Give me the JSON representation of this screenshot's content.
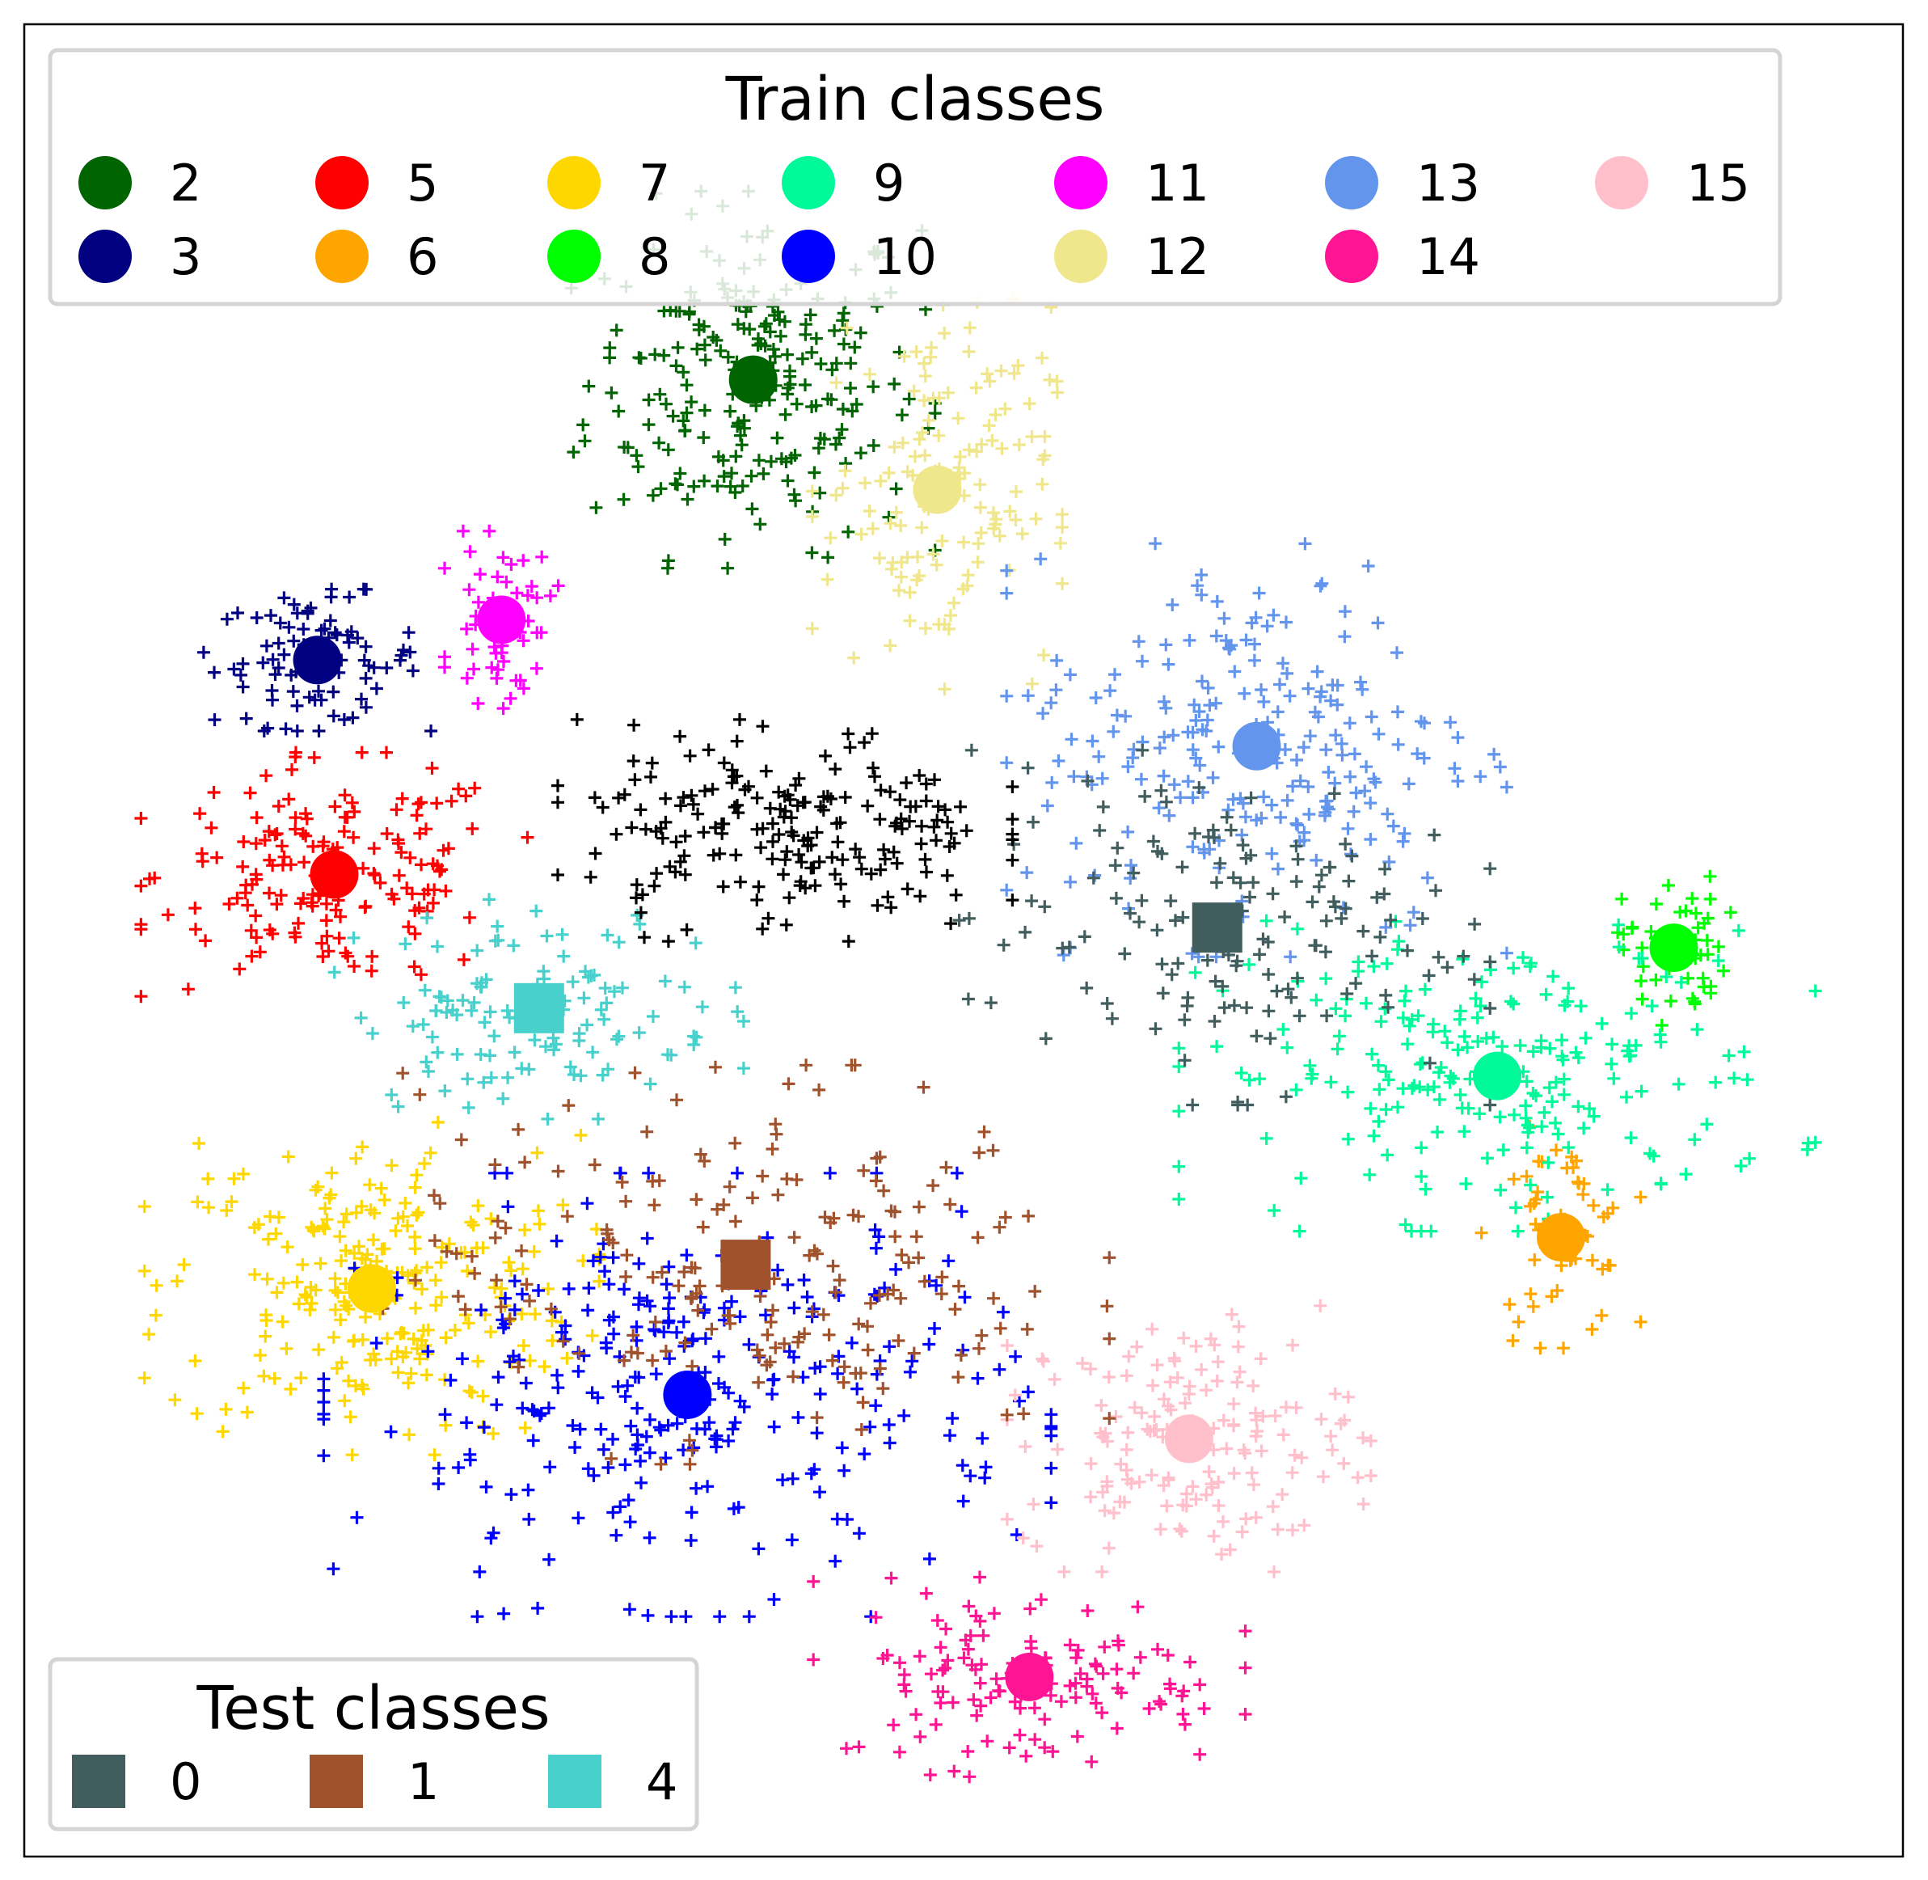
{
  "chart_data": {
    "type": "scatter",
    "title": "",
    "xlabel": "",
    "ylabel": "",
    "axes_ticks": false,
    "grid": false,
    "xlim": [
      0,
      100
    ],
    "ylim": [
      0,
      100
    ],
    "train_legend": {
      "title": "Train classes",
      "placement": "top",
      "entries": [
        {
          "label": "2",
          "color": "#006400"
        },
        {
          "label": "3",
          "color": "#000080"
        },
        {
          "label": "5",
          "color": "#ff0000"
        },
        {
          "label": "6",
          "color": "#ffa500"
        },
        {
          "label": "7",
          "color": "#ffd700"
        },
        {
          "label": "8",
          "color": "#00ff00"
        },
        {
          "label": "9",
          "color": "#00fa9a"
        },
        {
          "label": "10",
          "color": "#0000ff"
        },
        {
          "label": "11",
          "color": "#ff00ff"
        },
        {
          "label": "12",
          "color": "#f0e68c"
        },
        {
          "label": "13",
          "color": "#6495ed"
        },
        {
          "label": "14",
          "color": "#ff1493"
        },
        {
          "label": "15",
          "color": "#ffc0cb"
        }
      ]
    },
    "test_legend": {
      "title": "Test classes",
      "placement": "lower-left",
      "entries": [
        {
          "label": "0",
          "color": "#415d5e"
        },
        {
          "label": "1",
          "color": "#a0522d"
        },
        {
          "label": "4",
          "color": "#48d1cc"
        }
      ]
    },
    "clusters": [
      {
        "label": "2",
        "color": "#006400",
        "marker": "circle",
        "center": [
          38.8,
          80.6
        ],
        "spread": [
          8.0,
          8.5
        ],
        "count": 240
      },
      {
        "label": "3",
        "color": "#000080",
        "marker": "circle",
        "center": [
          15.6,
          65.3
        ],
        "spread": [
          5.0,
          3.2
        ],
        "count": 90
      },
      {
        "label": "5",
        "color": "#ff0000",
        "marker": "circle",
        "center": [
          16.5,
          53.6
        ],
        "spread": [
          8.5,
          5.5
        ],
        "count": 170
      },
      {
        "label": "6",
        "color": "#ffa500",
        "marker": "circle",
        "center": [
          81.8,
          33.8
        ],
        "spread": [
          3.5,
          5.0
        ],
        "count": 55
      },
      {
        "label": "7",
        "color": "#ffd700",
        "marker": "circle",
        "center": [
          18.5,
          31.0
        ],
        "spread": [
          10.0,
          7.5
        ],
        "count": 240
      },
      {
        "label": "8",
        "color": "#00ff00",
        "marker": "circle",
        "center": [
          87.8,
          49.6
        ],
        "spread": [
          2.5,
          3.5
        ],
        "count": 55
      },
      {
        "label": "9",
        "color": "#00fa9a",
        "marker": "circle",
        "center": [
          78.4,
          42.6
        ],
        "spread": [
          14.0,
          7.0
        ],
        "count": 220
      },
      {
        "label": "10",
        "color": "#0000ff",
        "marker": "circle",
        "center": [
          35.3,
          25.2
        ],
        "spread": [
          16.0,
          10.0
        ],
        "count": 300
      },
      {
        "label": "11",
        "color": "#ff00ff",
        "marker": "circle",
        "center": [
          25.4,
          67.5
        ],
        "spread": [
          2.5,
          4.0
        ],
        "count": 55
      },
      {
        "label": "12",
        "color": "#f0e68c",
        "marker": "circle",
        "center": [
          48.6,
          74.6
        ],
        "spread": [
          5.5,
          9.0
        ],
        "count": 140
      },
      {
        "label": "13",
        "color": "#6495ed",
        "marker": "circle",
        "center": [
          65.6,
          60.6
        ],
        "spread": [
          11.0,
          9.5
        ],
        "count": 230
      },
      {
        "label": "14",
        "color": "#ff1493",
        "marker": "circle",
        "center": [
          53.5,
          9.8
        ],
        "spread": [
          9.5,
          4.5
        ],
        "count": 130
      },
      {
        "label": "15",
        "color": "#ffc0cb",
        "marker": "circle",
        "center": [
          62.0,
          22.8
        ],
        "spread": [
          8.0,
          6.0
        ],
        "count": 160
      },
      {
        "label": "0",
        "color": "#415d5e",
        "marker": "square",
        "center": [
          63.5,
          50.7
        ],
        "spread": [
          12.0,
          8.0
        ],
        "count": 150
      },
      {
        "label": "1",
        "color": "#a0522d",
        "marker": "square",
        "center": [
          38.4,
          32.3
        ],
        "spread": [
          16.0,
          9.0
        ],
        "count": 200
      },
      {
        "label": "4",
        "color": "#48d1cc",
        "marker": "square",
        "center": [
          27.4,
          46.3
        ],
        "spread": [
          9.0,
          5.0
        ],
        "count": 120
      },
      {
        "label": "",
        "color": "#000000",
        "marker": "none",
        "center": [
          40.5,
          56.0
        ],
        "spread": [
          10.0,
          5.0
        ],
        "count": 200
      }
    ]
  }
}
